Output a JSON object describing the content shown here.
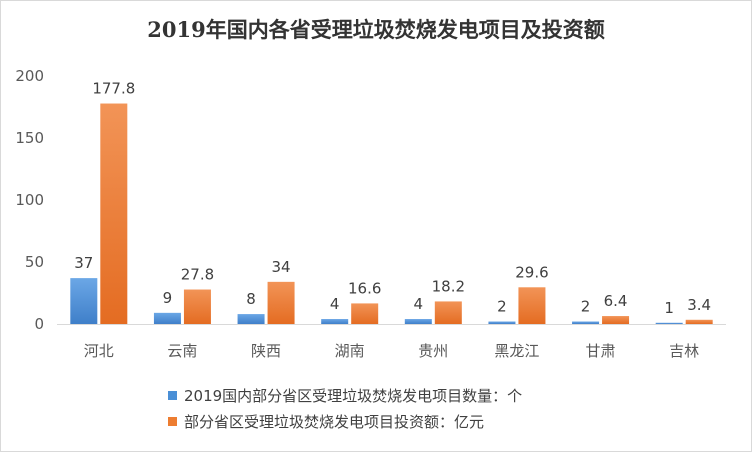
{
  "chart_data": {
    "type": "bar",
    "title": "2019年国内各省受理垃圾焚烧发电项目及投资额",
    "categories": [
      "河北",
      "云南",
      "陕西",
      "湖南",
      "贵州",
      "黑龙江",
      "甘肃",
      "吉林"
    ],
    "series": [
      {
        "name": "2019国内部分省区受理垃圾焚烧发电项目数量：个",
        "color": "#4a8fd6",
        "values": [
          37,
          9,
          8,
          4,
          4,
          2,
          2,
          1
        ],
        "labels": [
          "37",
          "9",
          "8",
          "4",
          "4",
          "2",
          "2",
          "1"
        ]
      },
      {
        "name": "部分省区受理垃圾焚烧发电项目投资额：亿元",
        "color": "#ed7d31",
        "values": [
          177.8,
          27.8,
          34,
          16.6,
          18.2,
          29.6,
          6.4,
          3.4
        ],
        "labels": [
          "177.8",
          "27.8",
          "34",
          "16.6",
          "18.2",
          "29.6",
          "6.4",
          "3.4"
        ]
      }
    ],
    "ylim": [
      0,
      200
    ],
    "yticks": [
      "0",
      "50",
      "100",
      "150",
      "200"
    ],
    "grid": false,
    "legend_position": "bottom"
  }
}
